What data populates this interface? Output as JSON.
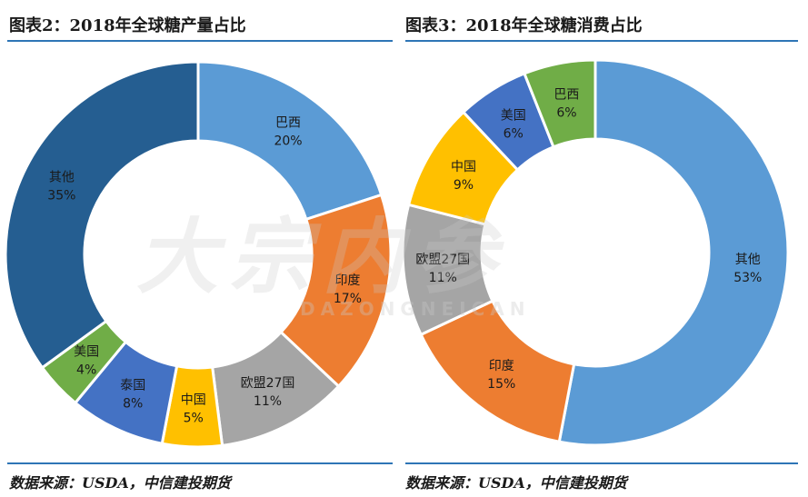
{
  "chart_data": [
    {
      "type": "pie",
      "title": "图表2：2018年全球糖产量占比",
      "source": "数据来源：USDA，中信建投期货",
      "categories": [
        "巴西",
        "印度",
        "欧盟27国",
        "中国",
        "泰国",
        "美国",
        "其他"
      ],
      "values": [
        20,
        17,
        11,
        5,
        8,
        4,
        35
      ],
      "labels": [
        "20%",
        "17%",
        "11%",
        "5%",
        "8%",
        "4%",
        "35%"
      ],
      "colors": [
        "#5b9bd5",
        "#ed7d31",
        "#a5a5a5",
        "#ffc000",
        "#4472c4",
        "#70ad47",
        "#255e91"
      ]
    },
    {
      "type": "pie",
      "title": "图表3：2018年全球糖消费占比",
      "source": "数据来源：USDA，中信建投期货",
      "categories": [
        "其他",
        "印度",
        "欧盟27国",
        "中国",
        "美国",
        "巴西"
      ],
      "values": [
        53,
        15,
        11,
        9,
        6,
        6
      ],
      "labels": [
        "53%",
        "15%",
        "11%",
        "9%",
        "6%",
        "6%"
      ],
      "colors": [
        "#5b9bd5",
        "#ed7d31",
        "#a5a5a5",
        "#ffc000",
        "#4472c4",
        "#70ad47"
      ]
    }
  ]
}
